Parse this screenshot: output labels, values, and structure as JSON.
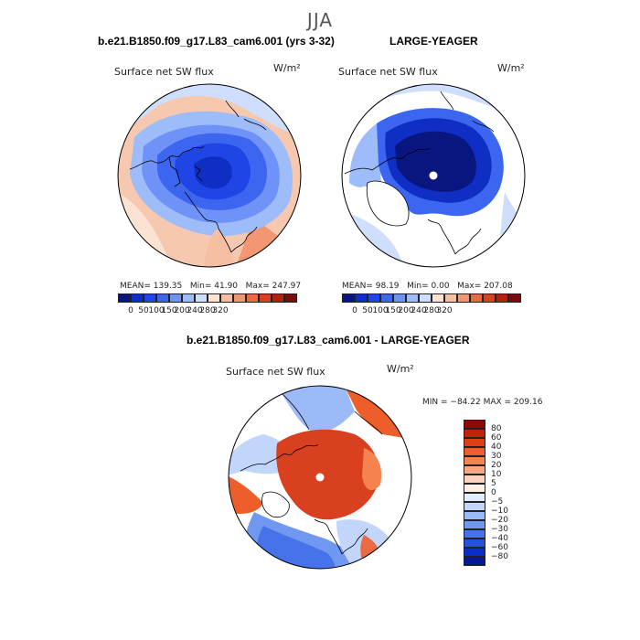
{
  "page": {
    "season": "JJA",
    "panel1_title": "b.e21.B1850.f09_g17.L83_cam6.001 (yrs 3-32)",
    "panel2_title": "LARGE-YEAGER",
    "panel3_title": "b.e21.B1850.f09_g17.L83_cam6.001 - LARGE-YEAGER"
  },
  "panels": [
    {
      "variable_label": "Surface net SW flux",
      "units_label": "W/m²",
      "stats": {
        "mean_label": "MEAN=",
        "mean": "139.35",
        "min_label": "Min=",
        "min": "41.90",
        "max_label": "Max=",
        "max": "247.97"
      }
    },
    {
      "variable_label": "Surface net SW flux",
      "units_label": "W/m²",
      "stats": {
        "mean_label": "MEAN=",
        "mean": "98.19",
        "min_label": "Min=",
        "min": "0.00",
        "max_label": "Max=",
        "max": "207.08"
      }
    },
    {
      "variable_label": "Surface net SW flux",
      "units_label": "W/m²",
      "stats_text": "MIN = −84.22  MAX = 209.16"
    }
  ],
  "colorbar_abs": {
    "colors": [
      "#0a1680",
      "#0f2ec4",
      "#1f45e6",
      "#3d66f0",
      "#6e92f7",
      "#9fbcfa",
      "#cfdefd",
      "#fbe2d2",
      "#f7bfa2",
      "#f29771",
      "#ea6a44",
      "#d9401f",
      "#b3200e",
      "#7a0b0b"
    ],
    "tick_labels": [
      "0",
      "50",
      "100",
      "150",
      "200",
      "240",
      "280",
      "320"
    ]
  },
  "colorbar_diff": {
    "colors": [
      "#8a0a06",
      "#c4210b",
      "#e03d12",
      "#ee5e2b",
      "#f5824f",
      "#f8a982",
      "#fbd2bd",
      "#fdf0e6",
      "#e4edfd",
      "#c2d6fb",
      "#9bbaf7",
      "#7098f1",
      "#4672ea",
      "#2451e0",
      "#0a2ec7",
      "#041a8f"
    ],
    "tick_labels": [
      "80",
      "60",
      "40",
      "30",
      "20",
      "10",
      "5",
      "0",
      "−5",
      "−10",
      "−20",
      "−30",
      "−40",
      "−60",
      "−80"
    ]
  },
  "chart_data": [
    {
      "type": "heatmap",
      "title": "Surface net SW flux",
      "subtitle": "b.e21.B1850.f09_g17.L83_cam6.001 (yrs 3-32)",
      "projection": "polar-stereographic, North Pole",
      "units": "W/m2",
      "season": "JJA",
      "colorbar_ticks": [
        0,
        50,
        100,
        150,
        200,
        240,
        280,
        320
      ],
      "mean": 139.35,
      "min": 41.9,
      "max": 247.97
    },
    {
      "type": "heatmap",
      "title": "Surface net SW flux",
      "subtitle": "LARGE-YEAGER",
      "projection": "polar-stereographic, North Pole",
      "units": "W/m2",
      "season": "JJA",
      "colorbar_ticks": [
        0,
        50,
        100,
        150,
        200,
        240,
        280,
        320
      ],
      "mean": 98.19,
      "min": 0.0,
      "max": 207.08
    },
    {
      "type": "heatmap",
      "title": "Surface net SW flux",
      "subtitle": "b.e21.B1850.f09_g17.L83_cam6.001 - LARGE-YEAGER",
      "projection": "polar-stereographic, North Pole",
      "units": "W/m2",
      "season": "JJA",
      "colorbar_ticks": [
        80,
        60,
        40,
        30,
        20,
        10,
        5,
        0,
        -5,
        -10,
        -20,
        -30,
        -40,
        -60,
        -80
      ],
      "min": -84.22,
      "max": 209.16
    }
  ]
}
